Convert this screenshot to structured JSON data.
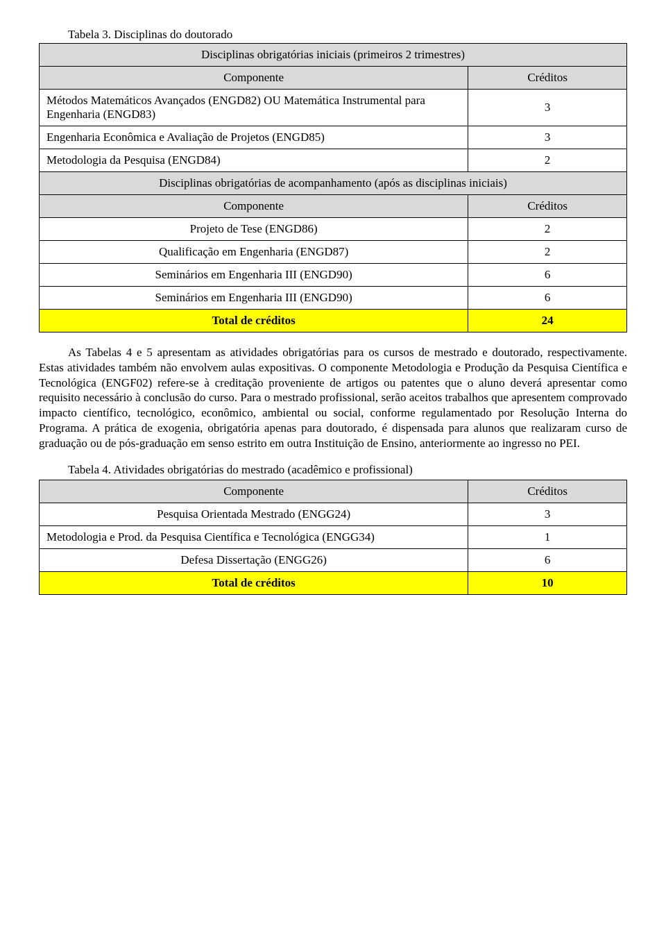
{
  "table3": {
    "caption": "Tabela 3. Disciplinas do doutorado",
    "section1": "Disciplinas obrigatórias iniciais (primeiros 2 trimestres)",
    "col_comp": "Componente",
    "col_cred": "Créditos",
    "rows1": [
      {
        "comp": "Métodos Matemáticos Avançados (ENGD82) OU Matemática Instrumental para Engenharia (ENGD83)",
        "cred": "3"
      },
      {
        "comp": "Engenharia Econômica e Avaliação de Projetos (ENGD85)",
        "cred": "3"
      },
      {
        "comp": "Metodologia da Pesquisa (ENGD84)",
        "cred": "2"
      }
    ],
    "section2": "Disciplinas obrigatórias de acompanhamento (após as disciplinas iniciais)",
    "rows2": [
      {
        "comp": "Projeto de Tese (ENGD86)",
        "cred": "2"
      },
      {
        "comp": "Qualificação em Engenharia (ENGD87)",
        "cred": "2"
      },
      {
        "comp": "Seminários em Engenharia III (ENGD90)",
        "cred": "6"
      },
      {
        "comp": "Seminários em Engenharia III (ENGD90)",
        "cred": "6"
      }
    ],
    "total_label": "Total de créditos",
    "total_value": "24"
  },
  "paragraph": "As Tabelas 4 e 5 apresentam as atividades obrigatórias  para os cursos de mestrado e doutorado, respectivamente. Estas atividades também não envolvem aulas expositivas. O componente Metodologia e Produção da Pesquisa Científica e Tecnológica (ENGF02) refere-se à creditação proveniente de artigos ou patentes que o aluno deverá apresentar como requisito necessário à conclusão do curso. Para o mestrado profissional, serão aceitos trabalhos que apresentem comprovado impacto científico, tecnológico, econômico, ambiental ou social, conforme regulamentado por Resolução Interna do Programa. A prática de exogenia, obrigatória apenas para doutorado, é dispensada para alunos que realizaram curso de graduação ou de pós-graduação em senso estrito em outra Instituição de Ensino, anteriormente ao ingresso no PEI.",
  "table4": {
    "caption": "Tabela 4. Atividades obrigatórias do mestrado (acadêmico e profissional)",
    "col_comp": "Componente",
    "col_cred": "Créditos",
    "rows": [
      {
        "comp": "Pesquisa Orientada Mestrado (ENGG24)",
        "cred": "3"
      },
      {
        "comp": "Metodologia e Prod. da Pesquisa Científica e Tecnológica (ENGG34)",
        "cred": "1"
      },
      {
        "comp": "Defesa Dissertação (ENGG26)",
        "cred": "6"
      }
    ],
    "total_label": "Total de créditos",
    "total_value": "10"
  },
  "colors": {
    "header_bg": "#d9d9d9",
    "total_bg": "#ffff00",
    "border": "#000000",
    "text": "#000000",
    "page_bg": "#ffffff"
  },
  "fonts": {
    "family": "Times New Roman",
    "body_size_pt": 13,
    "bold_rows": [
      "total"
    ]
  }
}
